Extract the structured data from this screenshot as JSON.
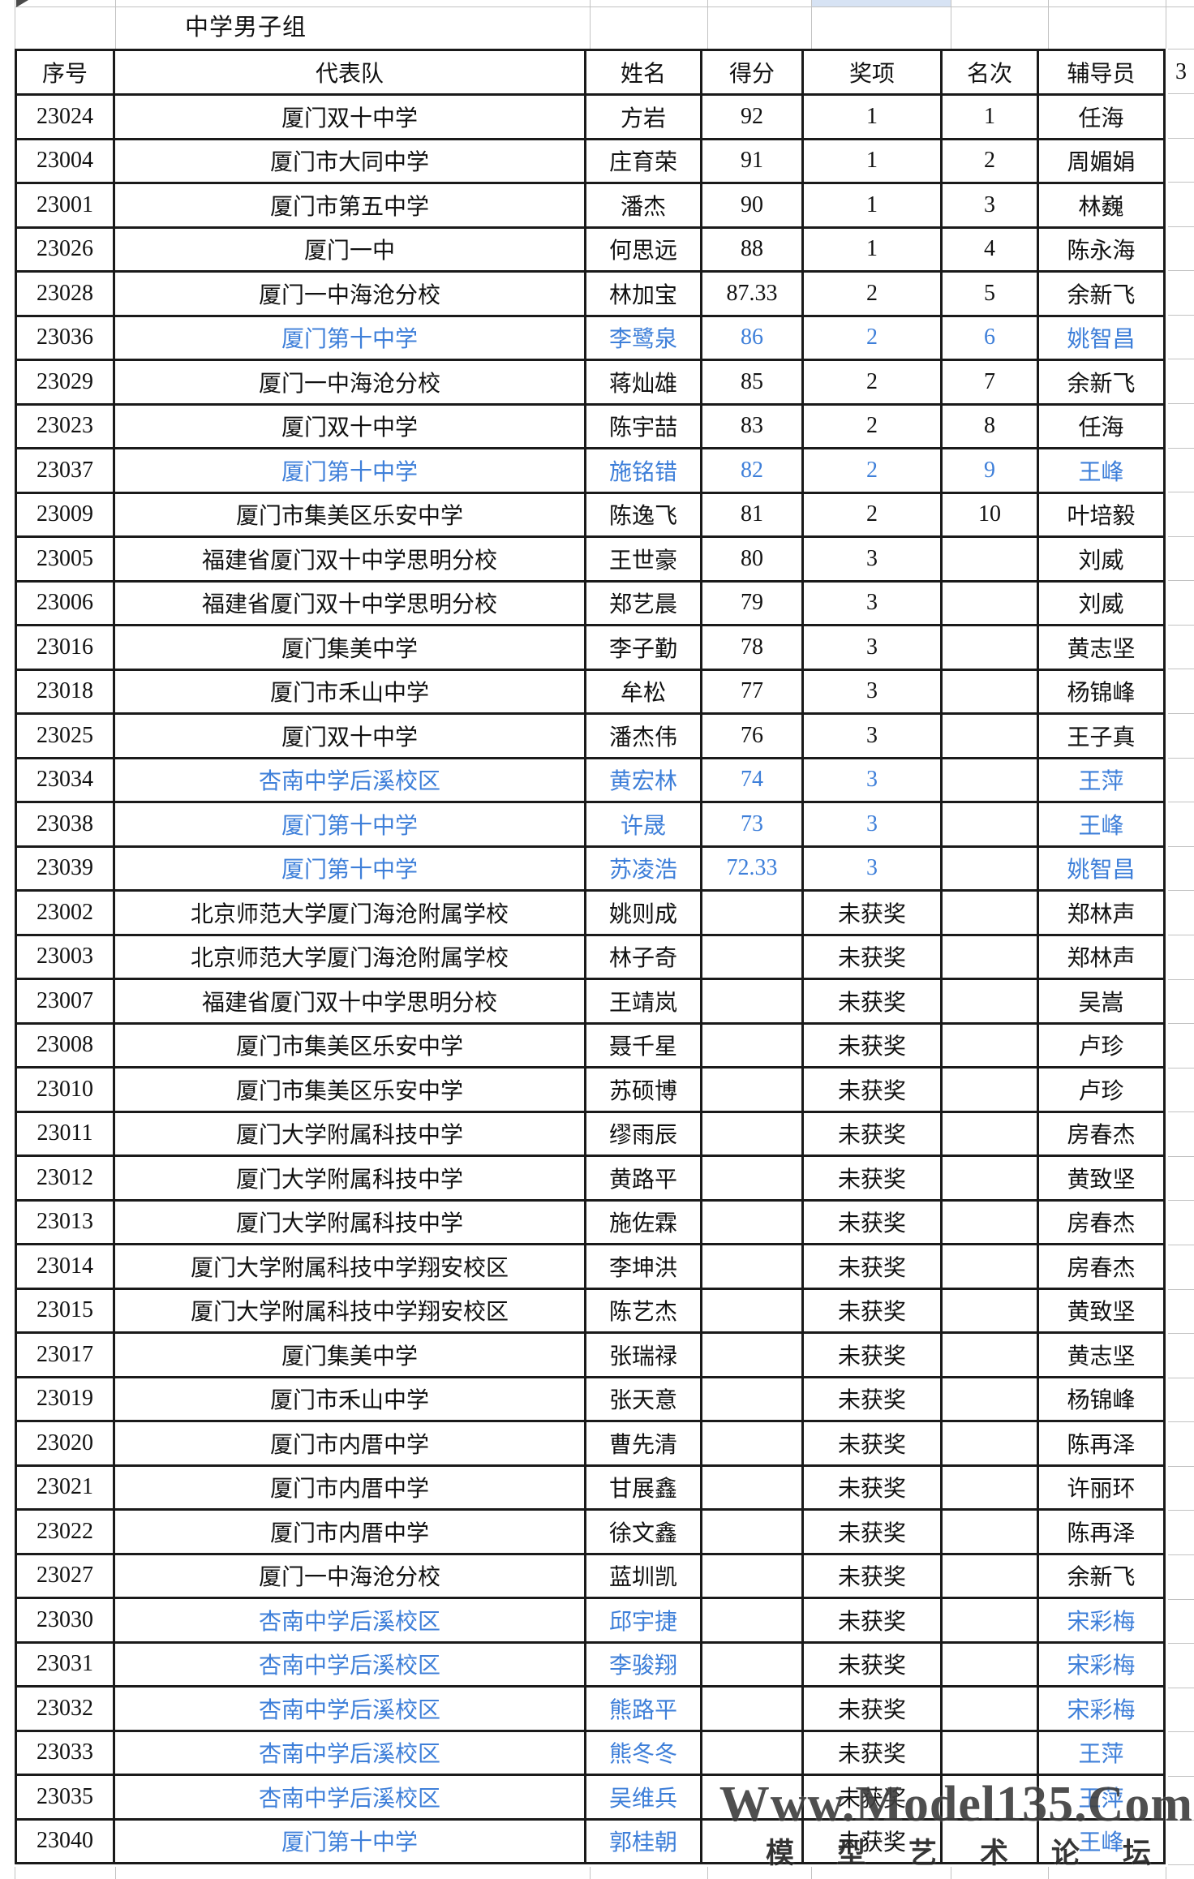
{
  "title_row": {
    "title": "中学男子组"
  },
  "table": {
    "columns": [
      {
        "key": "serial",
        "label": "序号"
      },
      {
        "key": "team",
        "label": "代表队"
      },
      {
        "key": "name",
        "label": "姓名"
      },
      {
        "key": "score",
        "label": "得分"
      },
      {
        "key": "award",
        "label": "奖项"
      },
      {
        "key": "rank",
        "label": "名次"
      },
      {
        "key": "advisor",
        "label": "辅导员"
      }
    ],
    "extra_column_header": "3",
    "no_award_label": "未获奖",
    "rows": [
      {
        "serial": "23024",
        "team": "厦门双十中学",
        "name": "方岩",
        "score": "92",
        "award": "1",
        "rank": "1",
        "advisor": "任海",
        "highlight": false
      },
      {
        "serial": "23004",
        "team": "厦门市大同中学",
        "name": "庄育荣",
        "score": "91",
        "award": "1",
        "rank": "2",
        "advisor": "周媚娟",
        "highlight": false
      },
      {
        "serial": "23001",
        "team": "厦门市第五中学",
        "name": "潘杰",
        "score": "90",
        "award": "1",
        "rank": "3",
        "advisor": "林巍",
        "highlight": false
      },
      {
        "serial": "23026",
        "team": "厦门一中",
        "name": "何思远",
        "score": "88",
        "award": "1",
        "rank": "4",
        "advisor": "陈永海",
        "highlight": false
      },
      {
        "serial": "23028",
        "team": "厦门一中海沧分校",
        "name": "林加宝",
        "score": "87.33",
        "award": "2",
        "rank": "5",
        "advisor": "余新飞",
        "highlight": false
      },
      {
        "serial": "23036",
        "team": "厦门第十中学",
        "name": "李鹭泉",
        "score": "86",
        "award": "2",
        "rank": "6",
        "advisor": "姚智昌",
        "highlight": true
      },
      {
        "serial": "23029",
        "team": "厦门一中海沧分校",
        "name": "蒋灿雄",
        "score": "85",
        "award": "2",
        "rank": "7",
        "advisor": "余新飞",
        "highlight": false
      },
      {
        "serial": "23023",
        "team": "厦门双十中学",
        "name": "陈宇喆",
        "score": "83",
        "award": "2",
        "rank": "8",
        "advisor": "任海",
        "highlight": false
      },
      {
        "serial": "23037",
        "team": "厦门第十中学",
        "name": "施铭错",
        "score": "82",
        "award": "2",
        "rank": "9",
        "advisor": "王峰",
        "highlight": true
      },
      {
        "serial": "23009",
        "team": "厦门市集美区乐安中学",
        "name": "陈逸飞",
        "score": "81",
        "award": "2",
        "rank": "10",
        "advisor": "叶培毅",
        "highlight": false
      },
      {
        "serial": "23005",
        "team": "福建省厦门双十中学思明分校",
        "name": "王世豪",
        "score": "80",
        "award": "3",
        "rank": "",
        "advisor": "刘威",
        "highlight": false
      },
      {
        "serial": "23006",
        "team": "福建省厦门双十中学思明分校",
        "name": "郑艺晨",
        "score": "79",
        "award": "3",
        "rank": "",
        "advisor": "刘威",
        "highlight": false
      },
      {
        "serial": "23016",
        "team": "厦门集美中学",
        "name": "李子勤",
        "score": "78",
        "award": "3",
        "rank": "",
        "advisor": "黄志坚",
        "highlight": false
      },
      {
        "serial": "23018",
        "team": "厦门市禾山中学",
        "name": "牟松",
        "score": "77",
        "award": "3",
        "rank": "",
        "advisor": "杨锦峰",
        "highlight": false
      },
      {
        "serial": "23025",
        "team": "厦门双十中学",
        "name": "潘杰伟",
        "score": "76",
        "award": "3",
        "rank": "",
        "advisor": "王子真",
        "highlight": false
      },
      {
        "serial": "23034",
        "team": "杏南中学后溪校区",
        "name": "黄宏林",
        "score": "74",
        "award": "3",
        "rank": "",
        "advisor": "王萍",
        "highlight": true
      },
      {
        "serial": "23038",
        "team": "厦门第十中学",
        "name": "许晟",
        "score": "73",
        "award": "3",
        "rank": "",
        "advisor": "王峰",
        "highlight": true
      },
      {
        "serial": "23039",
        "team": "厦门第十中学",
        "name": "苏凌浩",
        "score": "72.33",
        "award": "3",
        "rank": "",
        "advisor": "姚智昌",
        "highlight": true
      },
      {
        "serial": "23002",
        "team": "北京师范大学厦门海沧附属学校",
        "name": "姚则成",
        "score": "",
        "award": "未获奖",
        "rank": "",
        "advisor": "郑林声",
        "highlight": false
      },
      {
        "serial": "23003",
        "team": "北京师范大学厦门海沧附属学校",
        "name": "林子奇",
        "score": "",
        "award": "未获奖",
        "rank": "",
        "advisor": "郑林声",
        "highlight": false
      },
      {
        "serial": "23007",
        "team": "福建省厦门双十中学思明分校",
        "name": "王靖岚",
        "score": "",
        "award": "未获奖",
        "rank": "",
        "advisor": "吴嵩",
        "highlight": false
      },
      {
        "serial": "23008",
        "team": "厦门市集美区乐安中学",
        "name": "聂千星",
        "score": "",
        "award": "未获奖",
        "rank": "",
        "advisor": "卢珍",
        "highlight": false
      },
      {
        "serial": "23010",
        "team": "厦门市集美区乐安中学",
        "name": "苏硕博",
        "score": "",
        "award": "未获奖",
        "rank": "",
        "advisor": "卢珍",
        "highlight": false
      },
      {
        "serial": "23011",
        "team": "厦门大学附属科技中学",
        "name": "缪雨辰",
        "score": "",
        "award": "未获奖",
        "rank": "",
        "advisor": "房春杰",
        "highlight": false
      },
      {
        "serial": "23012",
        "team": "厦门大学附属科技中学",
        "name": "黄路平",
        "score": "",
        "award": "未获奖",
        "rank": "",
        "advisor": "黄致坚",
        "highlight": false
      },
      {
        "serial": "23013",
        "team": "厦门大学附属科技中学",
        "name": "施佐霖",
        "score": "",
        "award": "未获奖",
        "rank": "",
        "advisor": "房春杰",
        "highlight": false
      },
      {
        "serial": "23014",
        "team": "厦门大学附属科技中学翔安校区",
        "name": "李坤洪",
        "score": "",
        "award": "未获奖",
        "rank": "",
        "advisor": "房春杰",
        "highlight": false
      },
      {
        "serial": "23015",
        "team": "厦门大学附属科技中学翔安校区",
        "name": "陈艺杰",
        "score": "",
        "award": "未获奖",
        "rank": "",
        "advisor": "黄致坚",
        "highlight": false
      },
      {
        "serial": "23017",
        "team": "厦门集美中学",
        "name": "张瑞禄",
        "score": "",
        "award": "未获奖",
        "rank": "",
        "advisor": "黄志坚",
        "highlight": false
      },
      {
        "serial": "23019",
        "team": "厦门市禾山中学",
        "name": "张天意",
        "score": "",
        "award": "未获奖",
        "rank": "",
        "advisor": "杨锦峰",
        "highlight": false
      },
      {
        "serial": "23020",
        "team": "厦门市内厝中学",
        "name": "曹先清",
        "score": "",
        "award": "未获奖",
        "rank": "",
        "advisor": "陈再泽",
        "highlight": false
      },
      {
        "serial": "23021",
        "team": "厦门市内厝中学",
        "name": "甘展鑫",
        "score": "",
        "award": "未获奖",
        "rank": "",
        "advisor": "许丽环",
        "highlight": false
      },
      {
        "serial": "23022",
        "team": "厦门市内厝中学",
        "name": "徐文鑫",
        "score": "",
        "award": "未获奖",
        "rank": "",
        "advisor": "陈再泽",
        "highlight": false
      },
      {
        "serial": "23027",
        "team": "厦门一中海沧分校",
        "name": "蓝圳凯",
        "score": "",
        "award": "未获奖",
        "rank": "",
        "advisor": "余新飞",
        "highlight": false
      },
      {
        "serial": "23030",
        "team": "杏南中学后溪校区",
        "name": "邱宇捷",
        "score": "",
        "award": "未获奖",
        "rank": "",
        "advisor": "宋彩梅",
        "highlight": true
      },
      {
        "serial": "23031",
        "team": "杏南中学后溪校区",
        "name": "李骏翔",
        "score": "",
        "award": "未获奖",
        "rank": "",
        "advisor": "宋彩梅",
        "highlight": true
      },
      {
        "serial": "23032",
        "team": "杏南中学后溪校区",
        "name": "熊路平",
        "score": "",
        "award": "未获奖",
        "rank": "",
        "advisor": "宋彩梅",
        "highlight": true
      },
      {
        "serial": "23033",
        "team": "杏南中学后溪校区",
        "name": "熊冬冬",
        "score": "",
        "award": "未获奖",
        "rank": "",
        "advisor": "王萍",
        "highlight": true
      },
      {
        "serial": "23035",
        "team": "杏南中学后溪校区",
        "name": "吴维兵",
        "score": "",
        "award": "未获奖",
        "rank": "",
        "advisor": "王萍",
        "highlight": true
      },
      {
        "serial": "23040",
        "team": "厦门第十中学",
        "name": "郭桂朝",
        "score": "",
        "award": "未获奖",
        "rank": "",
        "advisor": "王峰",
        "highlight": true
      }
    ]
  },
  "watermark": {
    "line1": "Www.Model135.Com",
    "line2": "模型艺术论坛"
  },
  "colors": {
    "highlight_text": "#3e7fd9",
    "grid_black": "#1a1a1a",
    "grid_gray": "#c2c2c2",
    "selected_cell_fill": "#d7e3f4"
  }
}
